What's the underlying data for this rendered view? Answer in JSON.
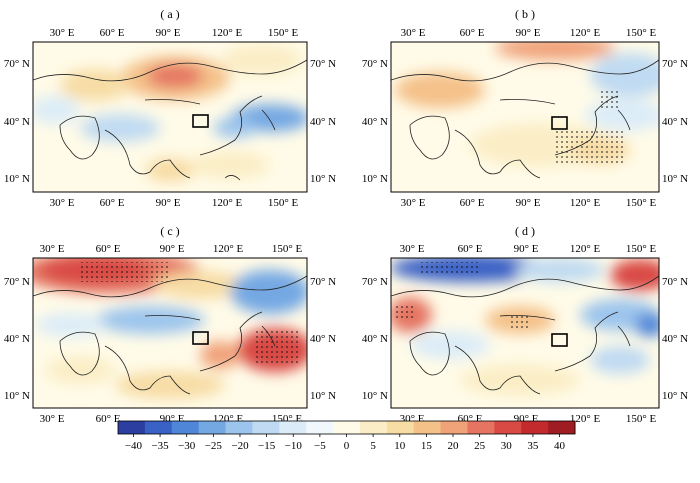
{
  "panels": [
    {
      "label": "( a )"
    },
    {
      "label": "( b )"
    },
    {
      "label": "( c )"
    },
    {
      "label": "( d )"
    }
  ],
  "lon_ticks": [
    "30° E",
    "60° E",
    "90° E",
    "120° E",
    "150° E"
  ],
  "lat_ticks": [
    "70° N",
    "40° N",
    "10° N"
  ],
  "colorbar": {
    "ticks": [
      "−40",
      "−35",
      "−30",
      "−25",
      "−20",
      "−15",
      "−10",
      "−5",
      "0",
      "5",
      "10",
      "15",
      "20",
      "25",
      "30",
      "35",
      "40"
    ],
    "colors": [
      "#2c3fa0",
      "#3a62c6",
      "#4f86d8",
      "#74a8e3",
      "#9cc5ed",
      "#bfdaf2",
      "#dbecf8",
      "#f0f8fc",
      "#fffbe8",
      "#fbeec6",
      "#f7dca4",
      "#f4c189",
      "#f0a279",
      "#e57462",
      "#d94a45",
      "#c22a2e",
      "#a01c23"
    ]
  },
  "colors": {
    "coast": "#222222",
    "box": "#000000",
    "stipple": "#111111"
  }
}
